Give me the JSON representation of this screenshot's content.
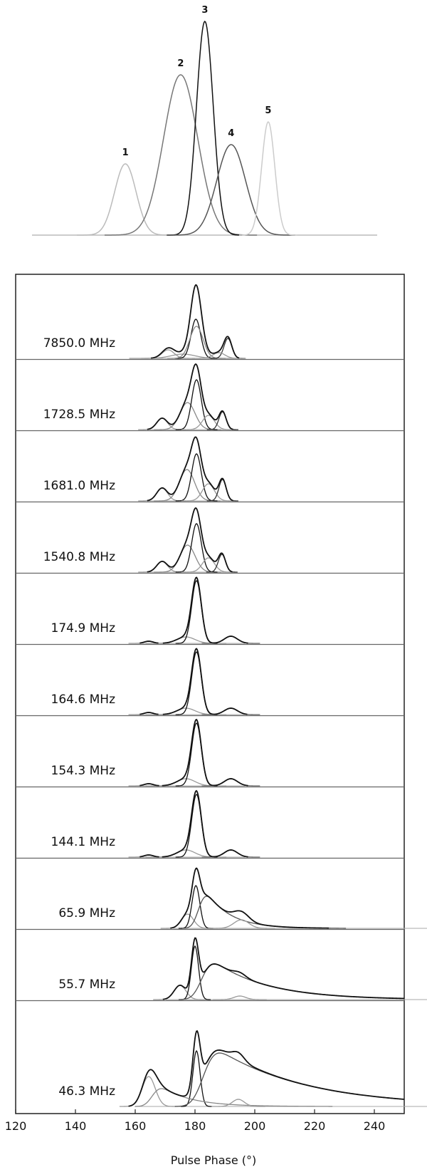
{
  "chart_data": {
    "type": "profile-stack",
    "xlabel": "Pulse Phase (°)",
    "xlim": [
      120,
      250
    ],
    "xticks": [
      120,
      140,
      160,
      180,
      200,
      220,
      240
    ],
    "top_panel": {
      "components": [
        {
          "label": "1",
          "center": 156.7,
          "width": 3.6,
          "amplitude": 100,
          "color": "#bbbbbb"
        },
        {
          "label": "2",
          "center": 175.2,
          "width": 5.7,
          "amplitude": 225,
          "color": "#777777"
        },
        {
          "label": "3",
          "center": 183.3,
          "width": 2.8,
          "amplitude": 300,
          "color": "#111111"
        },
        {
          "label": "4",
          "center": 192.1,
          "width": 4.8,
          "amplitude": 127,
          "color": "#555555"
        },
        {
          "label": "5",
          "center": 204.5,
          "width": 2.2,
          "amplitude": 159,
          "color": "#cccccc"
        }
      ]
    },
    "panels": [
      {
        "label": "7850.0 MHz",
        "components": [
          {
            "center": 171,
            "width": 2,
            "amplitude": 12,
            "color": "#999999"
          },
          {
            "center": 176,
            "width": 4,
            "amplitude": 6,
            "color": "#999999"
          },
          {
            "center": 180.3,
            "width": 1.6,
            "amplitude": 55,
            "color": "#111111"
          },
          {
            "center": 180.5,
            "width": 2.2,
            "amplitude": 45,
            "color": "#888888"
          },
          {
            "center": 191,
            "width": 1.3,
            "amplitude": 28,
            "color": "#333333"
          },
          {
            "center": 188,
            "width": 2,
            "amplitude": 8,
            "color": "#999999"
          }
        ]
      },
      {
        "label": "1728.5 MHz",
        "components": [
          {
            "center": 169,
            "width": 1.8,
            "amplitude": 16,
            "color": "#999999"
          },
          {
            "center": 177.5,
            "width": 2.5,
            "amplitude": 38,
            "color": "#888888"
          },
          {
            "center": 180.5,
            "width": 1.6,
            "amplitude": 70,
            "color": "#111111"
          },
          {
            "center": 184.5,
            "width": 2,
            "amplitude": 20,
            "color": "#999999"
          },
          {
            "center": 189.2,
            "width": 1.2,
            "amplitude": 25,
            "color": "#333333"
          }
        ]
      },
      {
        "label": "1681.0 MHz",
        "components": [
          {
            "center": 169,
            "width": 1.8,
            "amplitude": 18,
            "color": "#999999"
          },
          {
            "center": 177.3,
            "width": 2.5,
            "amplitude": 44,
            "color": "#888888"
          },
          {
            "center": 180.5,
            "width": 1.6,
            "amplitude": 66,
            "color": "#111111"
          },
          {
            "center": 184.5,
            "width": 2,
            "amplitude": 24,
            "color": "#999999"
          },
          {
            "center": 189.2,
            "width": 1.2,
            "amplitude": 30,
            "color": "#333333"
          }
        ]
      },
      {
        "label": "1540.8 MHz",
        "components": [
          {
            "center": 169,
            "width": 1.8,
            "amplitude": 15,
            "color": "#999999"
          },
          {
            "center": 177.5,
            "width": 2.5,
            "amplitude": 38,
            "color": "#888888"
          },
          {
            "center": 180.5,
            "width": 1.6,
            "amplitude": 68,
            "color": "#111111"
          },
          {
            "center": 184.5,
            "width": 2,
            "amplitude": 20,
            "color": "#999999"
          },
          {
            "center": 189,
            "width": 1.2,
            "amplitude": 25,
            "color": "#333333"
          }
        ]
      },
      {
        "label": "174.9 MHz",
        "components": [
          {
            "center": 164.5,
            "width": 1.5,
            "amplitude": 3,
            "color": "#999999"
          },
          {
            "center": 177,
            "width": 3,
            "amplitude": 9,
            "color": "#999999"
          },
          {
            "center": 180.5,
            "width": 1.6,
            "amplitude": 88,
            "color": "#111111"
          },
          {
            "center": 192,
            "width": 2.2,
            "amplitude": 10,
            "color": "#666666"
          }
        ]
      },
      {
        "label": "164.6 MHz",
        "components": [
          {
            "center": 164.5,
            "width": 1.5,
            "amplitude": 3,
            "color": "#999999"
          },
          {
            "center": 177,
            "width": 3,
            "amplitude": 9,
            "color": "#999999"
          },
          {
            "center": 180.5,
            "width": 1.6,
            "amplitude": 88,
            "color": "#111111"
          },
          {
            "center": 192,
            "width": 2.2,
            "amplitude": 9,
            "color": "#666666"
          }
        ]
      },
      {
        "label": "154.3 MHz",
        "components": [
          {
            "center": 164.5,
            "width": 1.5,
            "amplitude": 3,
            "color": "#999999"
          },
          {
            "center": 177,
            "width": 3,
            "amplitude": 10,
            "color": "#999999"
          },
          {
            "center": 180.5,
            "width": 1.6,
            "amplitude": 88,
            "color": "#111111"
          },
          {
            "center": 192,
            "width": 2.2,
            "amplitude": 10,
            "color": "#666666"
          }
        ]
      },
      {
        "label": "144.1 MHz",
        "components": [
          {
            "center": 164.5,
            "width": 1.5,
            "amplitude": 3,
            "color": "#999999"
          },
          {
            "center": 177,
            "width": 3,
            "amplitude": 10,
            "color": "#999999"
          },
          {
            "center": 180.5,
            "width": 1.6,
            "amplitude": 88,
            "color": "#111111"
          },
          {
            "center": 192,
            "width": 2.2,
            "amplitude": 10,
            "color": "#666666"
          }
        ]
      },
      {
        "label": "65.9 MHz",
        "components": [
          {
            "center": 177.5,
            "width": 2,
            "amplitude": 20,
            "color": "#999999"
          },
          {
            "center": 180.3,
            "width": 1.3,
            "amplitude": 60,
            "color": "#111111"
          },
          {
            "center": 181.5,
            "width": 1.8,
            "amplitude": 45,
            "tau": 8,
            "color": "#555555"
          },
          {
            "center": 195.5,
            "width": 2.5,
            "amplitude": 12,
            "color": "#999999"
          }
        ]
      },
      {
        "label": "55.7 MHz",
        "components": [
          {
            "center": 175,
            "width": 2,
            "amplitude": 20,
            "color": "#999999"
          },
          {
            "center": 180,
            "width": 1.2,
            "amplitude": 75,
            "color": "#111111"
          },
          {
            "center": 182.5,
            "width": 2.5,
            "amplitude": 50,
            "tau": 18,
            "color": "#555555"
          },
          {
            "center": 195,
            "width": 2,
            "amplitude": 5,
            "color": "#999999"
          }
        ]
      },
      {
        "label": "46.3 MHz",
        "components": [
          {
            "center": 164.5,
            "width": 2.2,
            "amplitude": 42,
            "color": "#999999"
          },
          {
            "center": 180.5,
            "width": 1.2,
            "amplitude": 78,
            "color": "#111111"
          },
          {
            "center": 166,
            "width": 2,
            "amplitude": 25,
            "tau": 10,
            "color": "#888888"
          },
          {
            "center": 183,
            "width": 3,
            "amplitude": 75,
            "tau": 30,
            "color": "#555555"
          },
          {
            "center": 194.5,
            "width": 2,
            "amplitude": 10,
            "color": "#999999"
          }
        ]
      }
    ]
  }
}
